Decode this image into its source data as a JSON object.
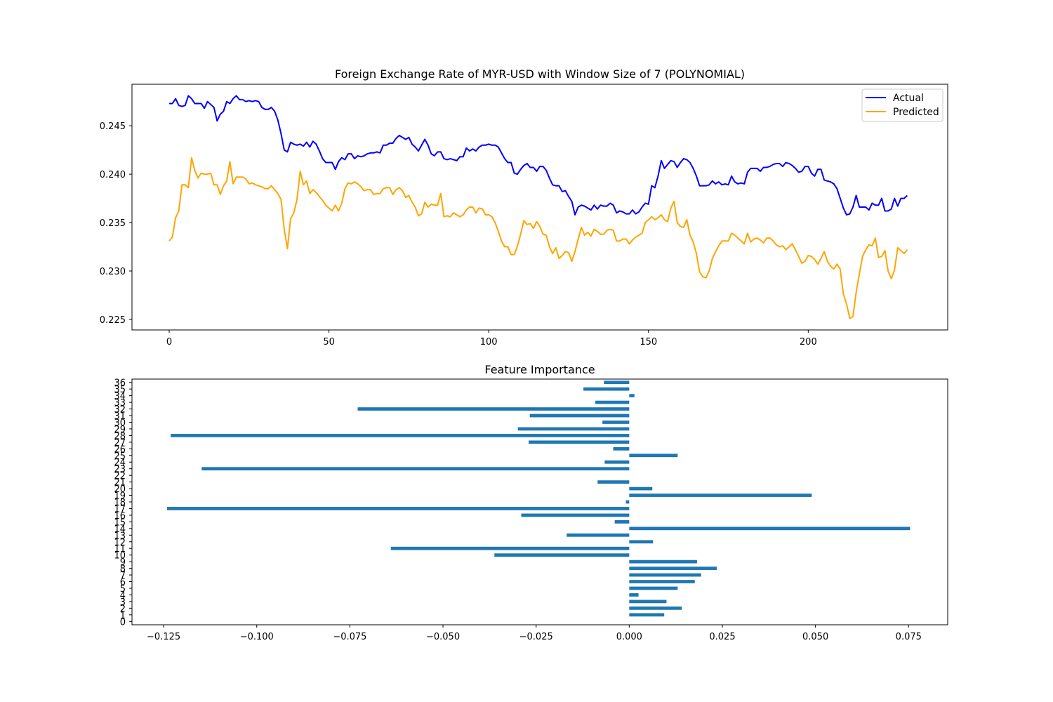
{
  "chart_data": [
    {
      "type": "line",
      "title": "Foreign Exchange Rate of MYR-USD with Window Size of 7 (POLYNOMIAL)",
      "xlabel": "",
      "ylabel": "",
      "xlim": [
        -11.65,
        243.65
      ],
      "ylim": [
        0.22391,
        0.24929
      ],
      "xticks": [
        0,
        50,
        100,
        150,
        200
      ],
      "xtick_labels": [
        "0",
        "50",
        "100",
        "150",
        "200"
      ],
      "yticks": [
        0.225,
        0.23,
        0.235,
        0.24,
        0.245
      ],
      "ytick_labels": [
        "0.225",
        "0.230",
        "0.235",
        "0.240",
        "0.245"
      ],
      "grid": false,
      "legend": {
        "position": "top-right",
        "entries": [
          "Actual",
          "Predicted"
        ]
      },
      "series": [
        {
          "name": "Actual",
          "color": "#0000ff",
          "x_start": 0,
          "values": [
            0.2473,
            0.2473,
            0.2478,
            0.2471,
            0.247,
            0.2471,
            0.2481,
            0.2478,
            0.2473,
            0.2473,
            0.2473,
            0.2468,
            0.2475,
            0.2472,
            0.2469,
            0.2455,
            0.2462,
            0.2465,
            0.2475,
            0.2473,
            0.2478,
            0.2481,
            0.2477,
            0.2477,
            0.2475,
            0.2476,
            0.2475,
            0.2476,
            0.2475,
            0.2469,
            0.2467,
            0.2467,
            0.2469,
            0.2465,
            0.2456,
            0.2442,
            0.2425,
            0.2423,
            0.2433,
            0.2431,
            0.243,
            0.2431,
            0.2429,
            0.2433,
            0.2428,
            0.2434,
            0.2431,
            0.2424,
            0.2416,
            0.2412,
            0.2412,
            0.2412,
            0.2405,
            0.2413,
            0.2417,
            0.2415,
            0.2421,
            0.2421,
            0.2416,
            0.2419,
            0.2418,
            0.2419,
            0.2421,
            0.2422,
            0.2422,
            0.2423,
            0.2422,
            0.243,
            0.243,
            0.2432,
            0.2432,
            0.2437,
            0.244,
            0.2438,
            0.2436,
            0.2438,
            0.2431,
            0.2428,
            0.2424,
            0.243,
            0.2436,
            0.243,
            0.2421,
            0.2419,
            0.2423,
            0.2423,
            0.2416,
            0.2415,
            0.2416,
            0.2415,
            0.2414,
            0.2418,
            0.2418,
            0.2427,
            0.2424,
            0.2426,
            0.2424,
            0.2428,
            0.243,
            0.243,
            0.2431,
            0.243,
            0.243,
            0.2428,
            0.2422,
            0.2416,
            0.2412,
            0.2412,
            0.2401,
            0.24,
            0.2405,
            0.2409,
            0.2411,
            0.2407,
            0.2407,
            0.2403,
            0.2408,
            0.2408,
            0.2404,
            0.2396,
            0.2389,
            0.2388,
            0.2388,
            0.2382,
            0.2383,
            0.2377,
            0.2372,
            0.2358,
            0.2366,
            0.2368,
            0.2367,
            0.2365,
            0.2363,
            0.2368,
            0.2364,
            0.2368,
            0.2367,
            0.2367,
            0.237,
            0.2368,
            0.236,
            0.2362,
            0.2361,
            0.2359,
            0.2359,
            0.2363,
            0.2359,
            0.2361,
            0.2366,
            0.237,
            0.2369,
            0.2388,
            0.2386,
            0.2398,
            0.2414,
            0.2406,
            0.241,
            0.2414,
            0.2413,
            0.2407,
            0.2412,
            0.2416,
            0.2415,
            0.2412,
            0.2406,
            0.2398,
            0.2388,
            0.2388,
            0.2388,
            0.2389,
            0.2393,
            0.239,
            0.2392,
            0.2389,
            0.239,
            0.2389,
            0.2398,
            0.2392,
            0.239,
            0.2391,
            0.239,
            0.2402,
            0.2406,
            0.2406,
            0.2406,
            0.2403,
            0.2407,
            0.2407,
            0.2408,
            0.241,
            0.2411,
            0.2411,
            0.2408,
            0.2412,
            0.2411,
            0.2409,
            0.2406,
            0.2402,
            0.2403,
            0.2408,
            0.2408,
            0.2401,
            0.2398,
            0.2405,
            0.2405,
            0.2394,
            0.2393,
            0.2392,
            0.239,
            0.2385,
            0.2375,
            0.2365,
            0.2358,
            0.2359,
            0.2366,
            0.2378,
            0.2366,
            0.2366,
            0.2366,
            0.2363,
            0.237,
            0.2368,
            0.2368,
            0.2375,
            0.2362,
            0.2362,
            0.2364,
            0.2375,
            0.2367,
            0.2375,
            0.2375,
            0.2378
          ]
        },
        {
          "name": "Predicted",
          "color": "#ffa500",
          "x_start": 0,
          "values": [
            0.2331,
            0.2335,
            0.2355,
            0.2362,
            0.2389,
            0.2389,
            0.2386,
            0.2417,
            0.2404,
            0.2396,
            0.2401,
            0.24,
            0.24,
            0.2401,
            0.2389,
            0.2389,
            0.2379,
            0.2388,
            0.2393,
            0.2413,
            0.239,
            0.2397,
            0.2397,
            0.2397,
            0.2395,
            0.239,
            0.2391,
            0.2389,
            0.2388,
            0.2387,
            0.2385,
            0.2385,
            0.2388,
            0.2384,
            0.238,
            0.2374,
            0.2343,
            0.2323,
            0.2354,
            0.236,
            0.2374,
            0.2403,
            0.2389,
            0.2393,
            0.238,
            0.2384,
            0.2381,
            0.2377,
            0.2373,
            0.2368,
            0.2365,
            0.2362,
            0.2368,
            0.2362,
            0.237,
            0.2385,
            0.2391,
            0.239,
            0.2392,
            0.239,
            0.2387,
            0.2383,
            0.2384,
            0.2384,
            0.2379,
            0.238,
            0.238,
            0.2385,
            0.2386,
            0.2386,
            0.2379,
            0.2384,
            0.2386,
            0.2383,
            0.2376,
            0.2378,
            0.2371,
            0.2366,
            0.2357,
            0.2359,
            0.2371,
            0.2366,
            0.2369,
            0.2368,
            0.2368,
            0.238,
            0.2356,
            0.2357,
            0.2356,
            0.236,
            0.2358,
            0.2356,
            0.2358,
            0.2363,
            0.2366,
            0.2366,
            0.236,
            0.2365,
            0.2364,
            0.2358,
            0.2358,
            0.2356,
            0.235,
            0.2341,
            0.2331,
            0.2325,
            0.2325,
            0.2317,
            0.2317,
            0.2326,
            0.2338,
            0.2352,
            0.2348,
            0.2349,
            0.2344,
            0.2351,
            0.2346,
            0.2338,
            0.2337,
            0.2325,
            0.2318,
            0.2324,
            0.2313,
            0.2316,
            0.232,
            0.2319,
            0.231,
            0.232,
            0.2333,
            0.2345,
            0.2337,
            0.234,
            0.2336,
            0.2343,
            0.2341,
            0.2338,
            0.2338,
            0.2342,
            0.2343,
            0.2342,
            0.2331,
            0.2331,
            0.2333,
            0.2333,
            0.2328,
            0.2332,
            0.2335,
            0.2337,
            0.2339,
            0.235,
            0.2353,
            0.2356,
            0.2353,
            0.2355,
            0.2358,
            0.2353,
            0.2351,
            0.2365,
            0.2372,
            0.235,
            0.2346,
            0.2345,
            0.2353,
            0.2337,
            0.233,
            0.2318,
            0.2299,
            0.2294,
            0.2293,
            0.23,
            0.2313,
            0.232,
            0.2326,
            0.2331,
            0.2331,
            0.2331,
            0.2339,
            0.2337,
            0.2334,
            0.2331,
            0.2328,
            0.2339,
            0.233,
            0.2333,
            0.2334,
            0.2332,
            0.2329,
            0.2334,
            0.2334,
            0.2331,
            0.2327,
            0.2325,
            0.2326,
            0.2322,
            0.2325,
            0.2328,
            0.2322,
            0.2315,
            0.2308,
            0.231,
            0.2316,
            0.2315,
            0.2312,
            0.2307,
            0.2313,
            0.232,
            0.231,
            0.2305,
            0.2302,
            0.2307,
            0.2302,
            0.2276,
            0.2266,
            0.2251,
            0.2253,
            0.2278,
            0.2297,
            0.2315,
            0.2322,
            0.2327,
            0.2326,
            0.2334,
            0.2314,
            0.2315,
            0.2321,
            0.23,
            0.2292,
            0.2301,
            0.2324,
            0.2321,
            0.2318,
            0.2322
          ]
        }
      ]
    },
    {
      "type": "bar",
      "orientation": "horizontal",
      "title": "Feature Importance",
      "xlabel": "",
      "ylabel": "",
      "xlim": [
        -0.1335,
        0.0855
      ],
      "xticks": [
        -0.125,
        -0.1,
        -0.075,
        -0.05,
        -0.025,
        0.0,
        0.025,
        0.05,
        0.075
      ],
      "xtick_labels": [
        "−0.125",
        "−0.100",
        "−0.075",
        "−0.050",
        "−0.025",
        "0.000",
        "0.025",
        "0.050",
        "0.075"
      ],
      "grid": false,
      "color": "#1f77b4",
      "categories": [
        "0",
        "1",
        "2",
        "3",
        "4",
        "5",
        "6",
        "7",
        "8",
        "9",
        "10",
        "11",
        "12",
        "13",
        "14",
        "15",
        "16",
        "17",
        "18",
        "19",
        "20",
        "21",
        "22",
        "23",
        "24",
        "25",
        "26",
        "27",
        "28",
        "29",
        "30",
        "31",
        "32",
        "33",
        "34",
        "35",
        "36"
      ],
      "values": [
        0.0,
        0.0094,
        0.0141,
        0.01,
        0.0025,
        0.013,
        0.0176,
        0.0193,
        0.0235,
        0.0182,
        -0.0362,
        -0.064,
        0.0064,
        -0.0168,
        0.0754,
        -0.0039,
        -0.029,
        -0.1241,
        -0.0009,
        0.049,
        0.0062,
        -0.0085,
        0.0,
        -0.1148,
        -0.0066,
        0.013,
        -0.0043,
        -0.027,
        -0.1231,
        -0.0299,
        -0.0072,
        -0.0267,
        -0.0729,
        -0.0091,
        0.0014,
        -0.0123,
        -0.0068
      ]
    }
  ]
}
